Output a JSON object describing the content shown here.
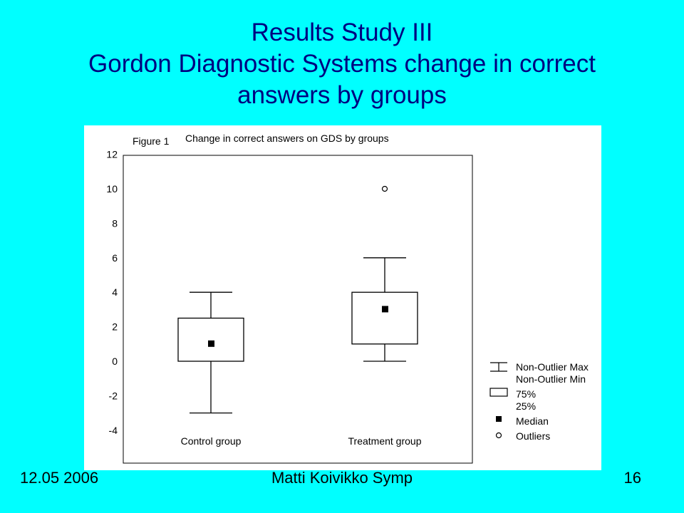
{
  "slide": {
    "title_lines": [
      "Results Study III",
      "Gordon Diagnostic Systems change in correct",
      "answers by groups"
    ],
    "footer_left": "12.05 2006",
    "footer_center": "Matti Koivikko Symp",
    "footer_right": "16"
  },
  "colors": {
    "background": "#00ffff",
    "title": "#000080",
    "panel": "#ffffff",
    "ink": "#000000"
  },
  "chart_data": {
    "type": "box",
    "figure_label": "Figure 1",
    "title": "Change in correct answers on GDS by groups",
    "xlabel": "",
    "ylabel": "",
    "yticks": [
      12,
      10,
      8,
      6,
      4,
      2,
      0,
      -2,
      -4
    ],
    "ylim": [
      -4,
      12
    ],
    "grid": false,
    "categories": [
      "Control group",
      "Treatment group"
    ],
    "groups": [
      {
        "name": "Control group",
        "whisker_max": 4,
        "q3": 2.5,
        "median": 1,
        "q1": 0,
        "whisker_min": -3,
        "outliers": []
      },
      {
        "name": "Treatment group",
        "whisker_max": 6,
        "q3": 4,
        "median": 3,
        "q1": 1,
        "whisker_min": 0,
        "outliers": [
          10
        ]
      }
    ],
    "legend": {
      "position": "bottom-right",
      "items": [
        "Non-Outlier Max",
        "Non-Outlier Min",
        "75%",
        "25%",
        "Median",
        "Outliers"
      ]
    }
  }
}
